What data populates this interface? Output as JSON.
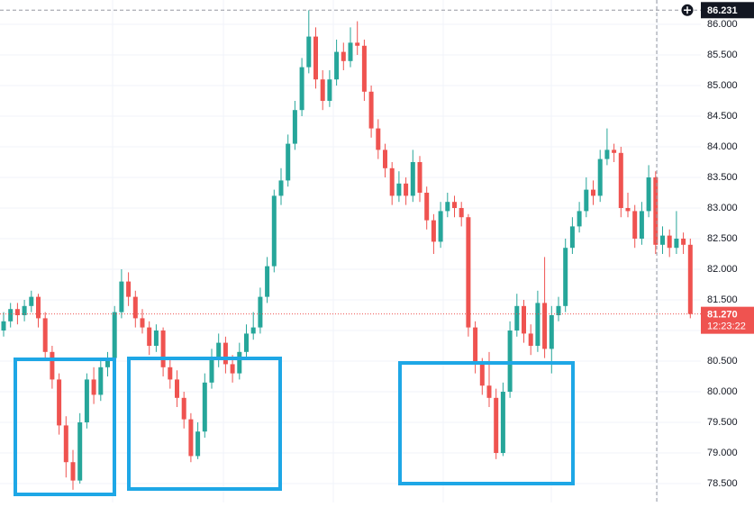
{
  "chart_data": {
    "type": "candlestick",
    "up_color": "#26a69a",
    "down_color": "#ef5350",
    "ylim": [
      78.265,
      86.397
    ],
    "yticks": [
      {
        "value": 78.5,
        "label": "78.500"
      },
      {
        "value": 79,
        "label": "79.000"
      },
      {
        "value": 79.5,
        "label": "79.500"
      },
      {
        "value": 80,
        "label": "80.000"
      },
      {
        "value": 80.5,
        "label": "80.500"
      },
      {
        "value": 81,
        "label": "81.000"
      },
      {
        "value": 81.5,
        "label": "81.500"
      },
      {
        "value": 82,
        "label": "82.000"
      },
      {
        "value": 82.5,
        "label": "82.500"
      },
      {
        "value": 83,
        "label": "83.000"
      },
      {
        "value": 83.5,
        "label": "83.500"
      },
      {
        "value": 84,
        "label": "84.000"
      },
      {
        "value": 84.5,
        "label": "84.500"
      },
      {
        "value": 85,
        "label": "85.000"
      },
      {
        "value": 85.5,
        "label": "85.500"
      },
      {
        "value": 86,
        "label": "86.000"
      }
    ],
    "grid": true,
    "crosshair_price": 86.231,
    "last_price": {
      "value": 81.27,
      "label": "81.270"
    },
    "countdown": "12:23:22",
    "candles": [
      [
        81.0,
        81.3,
        80.9,
        81.15
      ],
      [
        81.15,
        81.45,
        81.05,
        81.35
      ],
      [
        81.35,
        81.45,
        81.1,
        81.25
      ],
      [
        81.25,
        81.5,
        81.15,
        81.4
      ],
      [
        81.4,
        81.65,
        81.3,
        81.55
      ],
      [
        81.55,
        81.6,
        81.05,
        81.2
      ],
      [
        81.2,
        81.3,
        80.5,
        80.65
      ],
      [
        80.65,
        80.75,
        80.05,
        80.2
      ],
      [
        80.2,
        80.3,
        79.3,
        79.45
      ],
      [
        79.45,
        79.6,
        78.6,
        78.85
      ],
      [
        78.85,
        79.05,
        78.4,
        78.55
      ],
      [
        78.55,
        79.65,
        78.5,
        79.5
      ],
      [
        79.5,
        80.3,
        79.4,
        80.2
      ],
      [
        80.2,
        80.4,
        79.8,
        79.95
      ],
      [
        79.95,
        80.5,
        79.85,
        80.4
      ],
      [
        80.4,
        80.65,
        80.25,
        80.55
      ],
      [
        80.55,
        81.4,
        80.45,
        81.3
      ],
      [
        81.3,
        82.0,
        81.2,
        81.8
      ],
      [
        81.8,
        81.95,
        81.4,
        81.55
      ],
      [
        81.55,
        81.65,
        81.05,
        81.2
      ],
      [
        81.2,
        81.35,
        80.95,
        81.05
      ],
      [
        81.05,
        81.15,
        80.6,
        80.75
      ],
      [
        80.75,
        81.1,
        80.65,
        81.0
      ],
      [
        81.0,
        81.05,
        80.25,
        80.4
      ],
      [
        80.4,
        80.55,
        80.05,
        80.2
      ],
      [
        80.2,
        80.35,
        79.75,
        79.9
      ],
      [
        79.9,
        80.0,
        79.4,
        79.55
      ],
      [
        79.55,
        79.65,
        78.85,
        78.95
      ],
      [
        78.95,
        79.5,
        78.9,
        79.35
      ],
      [
        79.35,
        80.3,
        79.25,
        80.15
      ],
      [
        80.15,
        80.7,
        80.05,
        80.55
      ],
      [
        80.55,
        80.95,
        80.4,
        80.8
      ],
      [
        80.8,
        80.9,
        80.3,
        80.45
      ],
      [
        80.45,
        80.6,
        80.15,
        80.3
      ],
      [
        80.3,
        80.8,
        80.2,
        80.65
      ],
      [
        80.65,
        81.1,
        80.55,
        80.95
      ],
      [
        80.95,
        81.3,
        80.85,
        81.05
      ],
      [
        81.05,
        81.7,
        80.95,
        81.55
      ],
      [
        81.55,
        82.2,
        81.45,
        82.05
      ],
      [
        82.05,
        83.3,
        81.95,
        83.2
      ],
      [
        83.2,
        83.65,
        83.05,
        83.45
      ],
      [
        83.45,
        84.2,
        83.35,
        84.05
      ],
      [
        84.05,
        84.75,
        83.95,
        84.6
      ],
      [
        84.6,
        85.45,
        84.5,
        85.3
      ],
      [
        85.3,
        86.23,
        85.2,
        85.8
      ],
      [
        85.8,
        85.95,
        84.95,
        85.1
      ],
      [
        85.1,
        85.25,
        84.6,
        84.75
      ],
      [
        84.75,
        85.25,
        84.65,
        85.1
      ],
      [
        85.1,
        85.75,
        85.0,
        85.55
      ],
      [
        85.55,
        85.7,
        85.25,
        85.4
      ],
      [
        85.4,
        85.95,
        85.3,
        85.7
      ],
      [
        85.7,
        86.05,
        85.5,
        85.65
      ],
      [
        85.65,
        85.75,
        84.75,
        84.9
      ],
      [
        84.9,
        85.0,
        84.15,
        84.3
      ],
      [
        84.3,
        84.45,
        83.8,
        83.95
      ],
      [
        83.95,
        84.05,
        83.5,
        83.65
      ],
      [
        83.65,
        83.75,
        83.05,
        83.2
      ],
      [
        83.2,
        83.6,
        83.1,
        83.4
      ],
      [
        83.4,
        83.5,
        83.05,
        83.2
      ],
      [
        83.2,
        83.95,
        83.1,
        83.75
      ],
      [
        83.75,
        83.85,
        83.1,
        83.25
      ],
      [
        83.25,
        83.35,
        82.65,
        82.8
      ],
      [
        82.8,
        82.9,
        82.25,
        82.45
      ],
      [
        82.45,
        83.1,
        82.35,
        82.95
      ],
      [
        82.95,
        83.25,
        82.85,
        83.1
      ],
      [
        83.1,
        83.2,
        82.85,
        83.0
      ],
      [
        83.0,
        83.1,
        82.7,
        82.85
      ],
      [
        82.85,
        82.9,
        80.9,
        81.05
      ],
      [
        81.05,
        81.15,
        80.3,
        80.45
      ],
      [
        80.45,
        80.55,
        79.95,
        80.1
      ],
      [
        80.1,
        80.65,
        79.75,
        79.9
      ],
      [
        79.9,
        80.05,
        78.9,
        79.0
      ],
      [
        79.0,
        80.15,
        78.95,
        80.0
      ],
      [
        80.0,
        81.15,
        79.9,
        81.0
      ],
      [
        81.0,
        81.6,
        80.9,
        81.4
      ],
      [
        81.4,
        81.5,
        80.8,
        80.95
      ],
      [
        80.95,
        81.1,
        80.6,
        80.75
      ],
      [
        80.75,
        81.65,
        80.65,
        81.45
      ],
      [
        81.45,
        82.2,
        80.55,
        80.7
      ],
      [
        80.7,
        81.4,
        80.3,
        81.25
      ],
      [
        81.25,
        81.55,
        81.15,
        81.4
      ],
      [
        81.4,
        82.5,
        81.3,
        82.35
      ],
      [
        82.35,
        82.85,
        82.25,
        82.7
      ],
      [
        82.7,
        83.1,
        82.6,
        82.95
      ],
      [
        82.95,
        83.5,
        82.85,
        83.3
      ],
      [
        83.3,
        83.45,
        83.05,
        83.2
      ],
      [
        83.2,
        83.95,
        83.1,
        83.8
      ],
      [
        83.8,
        84.3,
        83.7,
        83.95
      ],
      [
        83.95,
        84.05,
        83.75,
        83.9
      ],
      [
        83.9,
        84.0,
        82.85,
        83.0
      ],
      [
        83.0,
        83.25,
        82.85,
        82.95
      ],
      [
        82.95,
        83.05,
        82.35,
        82.5
      ],
      [
        82.5,
        83.1,
        82.4,
        82.95
      ],
      [
        82.95,
        83.7,
        82.85,
        83.5
      ],
      [
        83.5,
        83.6,
        82.25,
        82.4
      ],
      [
        82.4,
        82.7,
        82.25,
        82.55
      ],
      [
        82.55,
        82.65,
        82.2,
        82.35
      ],
      [
        82.35,
        82.95,
        82.25,
        82.5
      ],
      [
        82.5,
        82.6,
        82.25,
        82.4
      ],
      [
        82.4,
        82.5,
        81.2,
        81.27
      ]
    ]
  }
}
